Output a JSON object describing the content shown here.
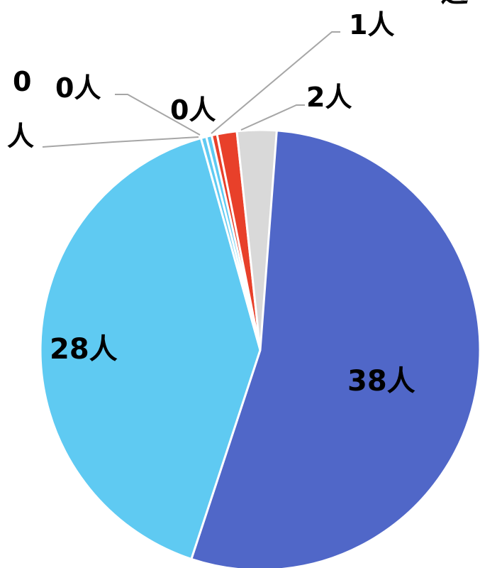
{
  "chart_data": {
    "type": "pie",
    "title": "",
    "slices": [
      {
        "label": "38人",
        "value": 38,
        "color": "#5067c8"
      },
      {
        "label": "28人",
        "value": 28,
        "color": "#5fcaf2"
      },
      {
        "label": "0",
        "label2": "人",
        "value": 0,
        "color": "#5fcaf2"
      },
      {
        "label": "0人",
        "value": 0,
        "color": "#5fcaf2"
      },
      {
        "label": "0人",
        "value": 0,
        "color": "#e8402a"
      },
      {
        "label": "1人",
        "value": 1,
        "color": "#e8402a"
      },
      {
        "label": "2人",
        "value": 2,
        "color": "#d9d9d9"
      }
    ],
    "partial_text": "過"
  }
}
